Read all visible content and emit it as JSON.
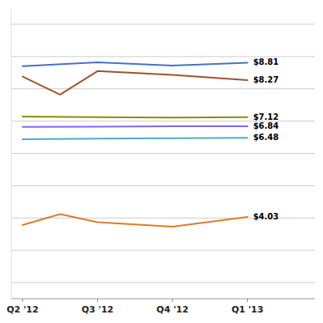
{
  "chart_data": {
    "type": "line",
    "series": [
      {
        "name": "$8.81",
        "color": "#4472C4",
        "x": [
          0,
          1,
          2,
          3
        ],
        "values": [
          8.7,
          8.82,
          8.72,
          8.81
        ]
      },
      {
        "name": "$8.27",
        "color": "#A0522D",
        "x": [
          0,
          0.5,
          1,
          2,
          3
        ],
        "values": [
          8.38,
          7.82,
          8.55,
          8.43,
          8.27
        ]
      },
      {
        "name": "$7.12",
        "color": "#8B8B00",
        "x": [
          0,
          1,
          2,
          3
        ],
        "values": [
          7.14,
          7.12,
          7.11,
          7.12
        ]
      },
      {
        "name": "$6.84",
        "color": "#7B68EE",
        "x": [
          0,
          1,
          2,
          3
        ],
        "values": [
          6.82,
          6.83,
          6.84,
          6.84
        ]
      },
      {
        "name": "$6.48",
        "color": "#4BACC6",
        "x": [
          0,
          1,
          2,
          3
        ],
        "values": [
          6.44,
          6.46,
          6.47,
          6.48
        ]
      },
      {
        "name": "$4.03",
        "color": "#E07B27",
        "x": [
          0,
          0.5,
          1,
          2,
          3
        ],
        "values": [
          3.78,
          4.12,
          3.87,
          3.73,
          4.03
        ]
      }
    ],
    "xlim": [
      -0.15,
      3.9
    ],
    "xticks": [
      {
        "value": 0,
        "label": "Q2 '12"
      },
      {
        "value": 1,
        "label": "Q3 '12"
      },
      {
        "value": 2,
        "label": "Q4 '12"
      },
      {
        "value": 3,
        "label": "Q1 '13"
      }
    ],
    "ylim": [
      1.5,
      10.5
    ],
    "yticks": [
      2,
      3,
      4,
      5,
      6,
      7,
      8,
      9,
      10
    ],
    "grid": true,
    "tick_labels": "x"
  }
}
